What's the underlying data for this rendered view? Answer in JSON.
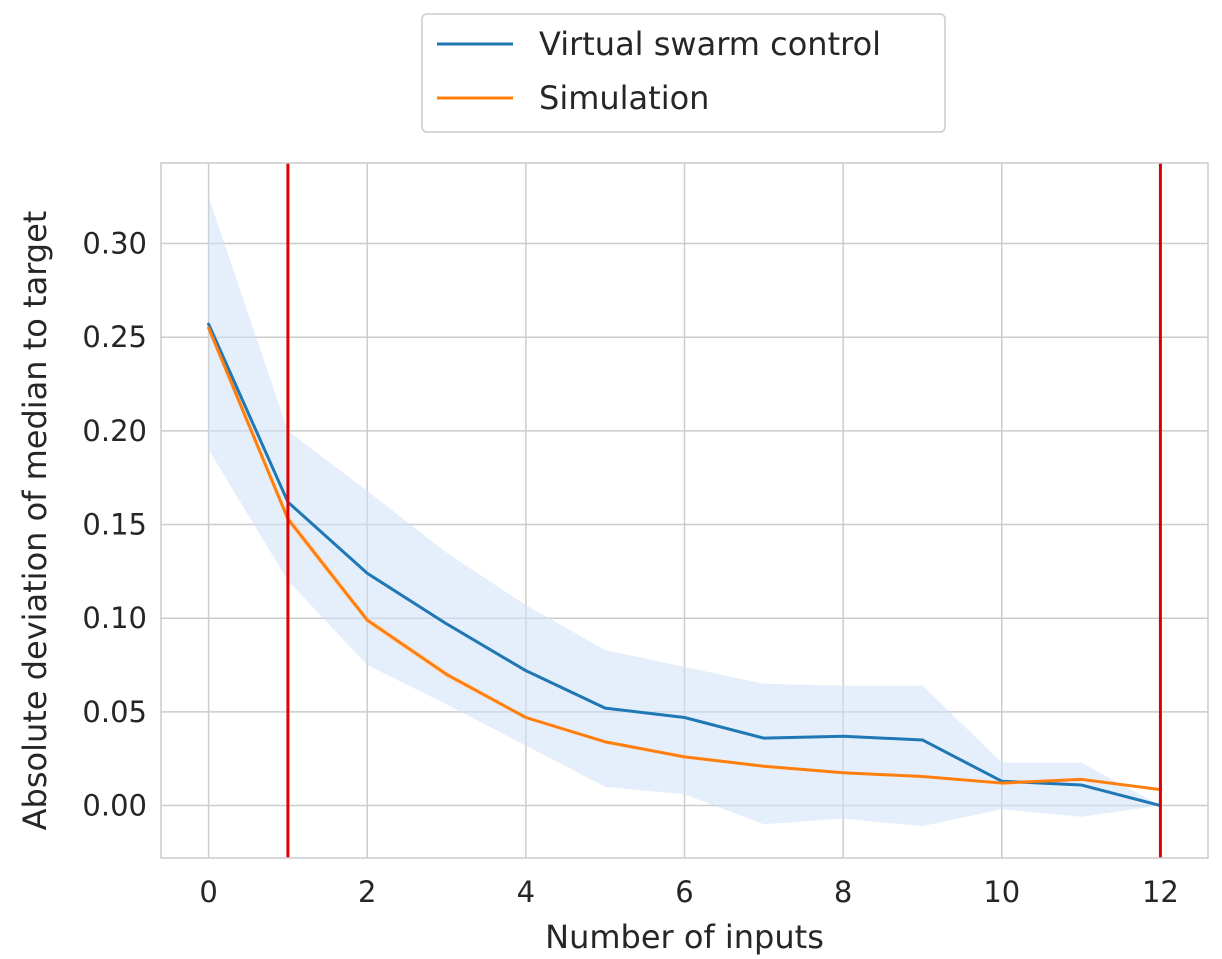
{
  "chart_data": {
    "type": "line",
    "title": "",
    "xlabel": "Number of inputs",
    "ylabel": "Absolute deviation of median to target",
    "xlim": [
      -0.6,
      12.6
    ],
    "ylim": [
      -0.028,
      0.343
    ],
    "xticks": [
      0,
      2,
      4,
      6,
      8,
      10,
      12
    ],
    "xtick_labels": [
      "0",
      "2",
      "4",
      "6",
      "8",
      "10",
      "12"
    ],
    "yticks": [
      0.0,
      0.05,
      0.1,
      0.15,
      0.2,
      0.25,
      0.3
    ],
    "ytick_labels": [
      "0.00",
      "0.05",
      "0.10",
      "0.15",
      "0.20",
      "0.25",
      "0.30"
    ],
    "grid": true,
    "legend_position": "top-center, outside plot",
    "x": [
      0,
      1,
      2,
      3,
      4,
      5,
      6,
      7,
      8,
      9,
      10,
      11,
      12
    ],
    "series": [
      {
        "name": "Virtual swarm control",
        "color": "#1f77b4",
        "values": [
          0.257,
          0.162,
          0.124,
          0.097,
          0.072,
          0.052,
          0.047,
          0.036,
          0.037,
          0.035,
          0.013,
          0.011,
          0.0
        ],
        "band_color": "#cfe2f7",
        "band_lower": [
          0.19,
          0.12,
          0.075,
          0.054,
          0.032,
          0.01,
          0.006,
          -0.01,
          -0.007,
          -0.011,
          -0.002,
          -0.006,
          0.0
        ],
        "band_upper": [
          0.325,
          0.2,
          0.168,
          0.135,
          0.107,
          0.083,
          0.074,
          0.065,
          0.064,
          0.064,
          0.023,
          0.023,
          0.0
        ]
      },
      {
        "name": "Simulation",
        "color": "#ff7f0e",
        "values": [
          0.255,
          0.153,
          0.099,
          0.07,
          0.047,
          0.034,
          0.026,
          0.021,
          0.0175,
          0.0155,
          0.012,
          0.014,
          0.0085
        ],
        "band_color": "#ffd9b8",
        "band_lower": [
          0.252,
          0.15,
          0.097,
          0.068,
          0.046,
          0.033,
          0.025,
          0.02,
          0.017,
          0.015,
          0.011,
          0.013,
          0.008
        ],
        "band_upper": [
          0.258,
          0.156,
          0.101,
          0.072,
          0.048,
          0.035,
          0.027,
          0.022,
          0.018,
          0.016,
          0.013,
          0.015,
          0.009
        ]
      }
    ],
    "vlines": [
      {
        "x": 1,
        "color": "#e00000"
      },
      {
        "x": 12,
        "color": "#e00000"
      }
    ]
  }
}
